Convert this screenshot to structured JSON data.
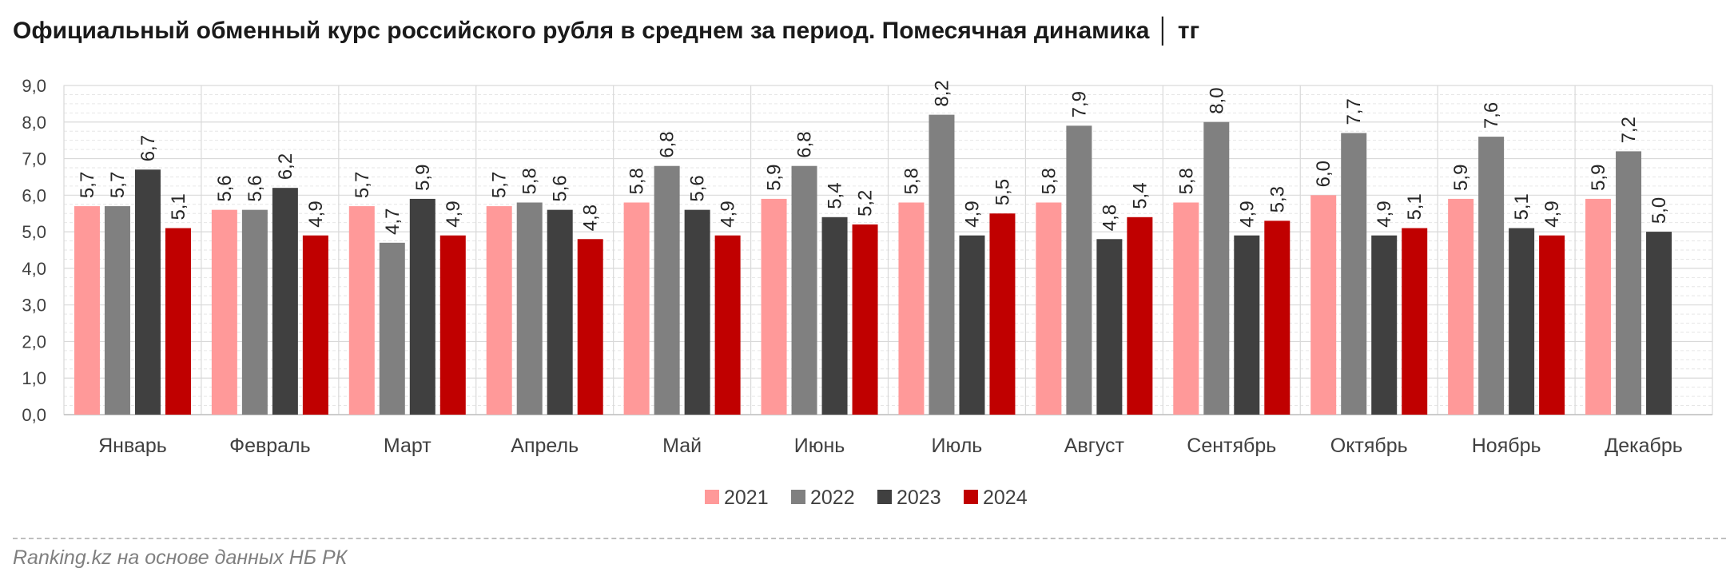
{
  "title": "Официальный обменный курс российского рубля в среднем за период. Помесячная динамика │ тг",
  "source": "Ranking.kz на основе данных НБ РК",
  "chart_data": {
    "type": "bar",
    "categories": [
      "Январь",
      "Февраль",
      "Март",
      "Апрель",
      "Май",
      "Июнь",
      "Июль",
      "Август",
      "Сентябрь",
      "Октябрь",
      "Ноябрь",
      "Декабрь"
    ],
    "series": [
      {
        "name": "2021",
        "color": "#ff9999",
        "values": [
          5.7,
          5.6,
          5.7,
          5.7,
          5.8,
          5.9,
          5.8,
          5.8,
          5.8,
          6.0,
          5.9,
          5.9
        ]
      },
      {
        "name": "2022",
        "color": "#808080",
        "values": [
          5.7,
          5.6,
          4.7,
          5.8,
          6.8,
          6.8,
          8.2,
          7.9,
          8.0,
          7.7,
          7.6,
          7.2
        ]
      },
      {
        "name": "2023",
        "color": "#404040",
        "values": [
          6.7,
          6.2,
          5.9,
          5.6,
          5.6,
          5.4,
          4.9,
          4.8,
          4.9,
          4.9,
          5.1,
          5.0
        ]
      },
      {
        "name": "2024",
        "color": "#c00000",
        "values": [
          5.1,
          4.9,
          4.9,
          4.8,
          4.9,
          5.2,
          5.5,
          5.4,
          5.3,
          5.1,
          4.9,
          null
        ]
      }
    ],
    "ylim": [
      0,
      9
    ],
    "yticks": [
      "0,0",
      "1,0",
      "2,0",
      "3,0",
      "4,0",
      "5,0",
      "6,0",
      "7,0",
      "8,0",
      "9,0"
    ],
    "grid": true,
    "legend_position": "bottom",
    "decimal_separator": ","
  }
}
